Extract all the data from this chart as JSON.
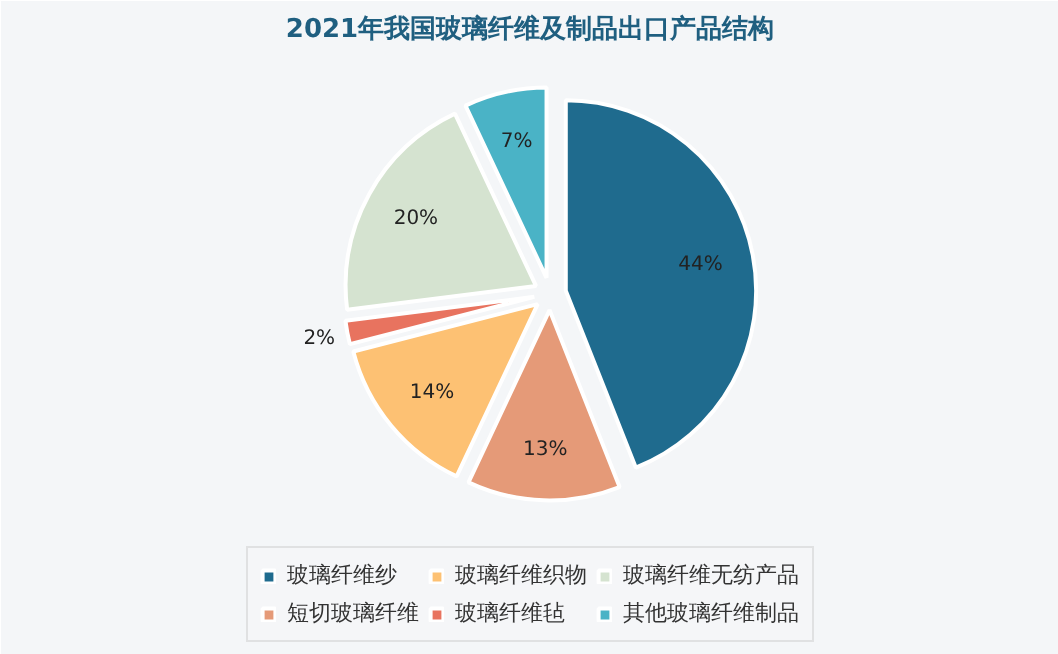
{
  "chart_data": {
    "type": "pie",
    "title": "2021年我国玻璃纤维及制品出口产品结构",
    "categories": [
      "玻璃纤维纱",
      "短切玻璃纤维",
      "玻璃纤维织物",
      "玻璃纤维毡",
      "玻璃纤维无纺产品",
      "其他玻璃纤维制品"
    ],
    "values": [
      44,
      13,
      14,
      2,
      20,
      7
    ],
    "colors": [
      "#1f6b8e",
      "#e59a78",
      "#fdc173",
      "#e8735f",
      "#d5e3d0",
      "#4ab3c6"
    ],
    "value_labels": [
      "44%",
      "13%",
      "14%",
      "2%",
      "20%",
      "7%"
    ],
    "legend": "bottom"
  }
}
